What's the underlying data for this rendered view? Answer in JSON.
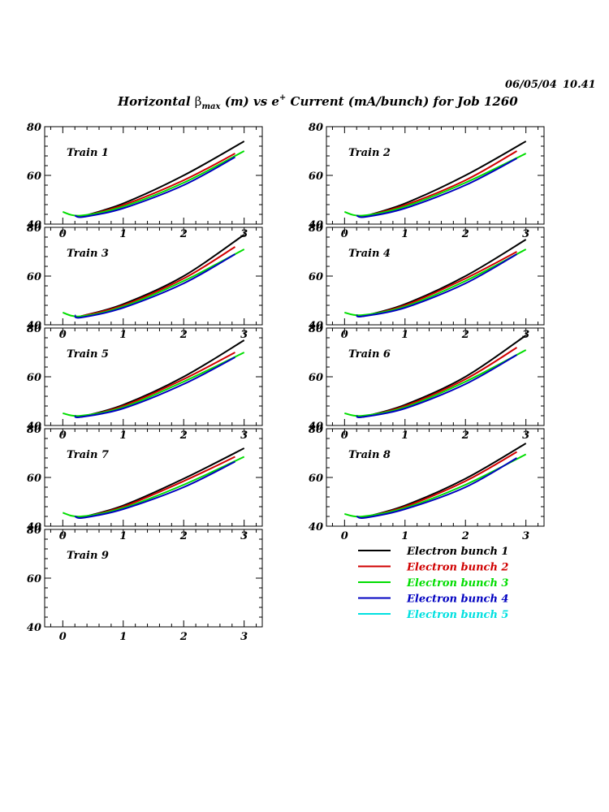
{
  "header": {
    "date": "06/05/04",
    "time": "10.41",
    "title_pre": "Horizontal ",
    "title_beta": "β",
    "title_sub": "max",
    "title_mid": " (m) vs e",
    "title_sup": "+",
    "title_post": " Current (mA/bunch) for  Job 1260"
  },
  "legend": {
    "items": [
      {
        "label": "Electron bunch 1",
        "color": "#000000"
      },
      {
        "label": "Electron bunch 2",
        "color": "#d00000"
      },
      {
        "label": "Electron bunch 3",
        "color": "#00dd00"
      },
      {
        "label": "Electron bunch 4",
        "color": "#0000c0"
      },
      {
        "label": "Electron bunch 5",
        "color": "#00e0e0"
      }
    ]
  },
  "chart_data": [
    {
      "type": "line",
      "title": "Train 1",
      "xlim": [
        -0.3,
        3.3
      ],
      "ylim": [
        40,
        80
      ],
      "x_ticks": [
        "0",
        "1",
        "2",
        "3"
      ],
      "y_ticks": [
        "40",
        "60",
        "80"
      ],
      "series": [
        {
          "name": "Electron bunch 1",
          "x": [
            0.3,
            1,
            2,
            3
          ],
          "y": [
            43,
            48.5,
            60,
            74
          ]
        },
        {
          "name": "Electron bunch 2",
          "x": [
            0.3,
            1,
            2,
            2.85
          ],
          "y": [
            43,
            47.8,
            58,
            69
          ]
        },
        {
          "name": "Electron bunch 3",
          "x": [
            0,
            0.3,
            1,
            2,
            3
          ],
          "y": [
            45,
            43.5,
            47.2,
            57,
            70
          ]
        },
        {
          "name": "Electron bunch 4",
          "x": [
            0.2,
            0.35,
            1,
            2,
            2.85
          ],
          "y": [
            43.5,
            43,
            46.5,
            56,
            67.5
          ]
        }
      ]
    },
    {
      "type": "line",
      "title": "Train 2",
      "xlim": [
        -0.3,
        3.3
      ],
      "ylim": [
        40,
        80
      ],
      "x_ticks": [
        "0",
        "1",
        "2",
        "3"
      ],
      "y_ticks": [
        "40",
        "60",
        "80"
      ],
      "series": [
        {
          "name": "Electron bunch 1",
          "x": [
            0.3,
            1,
            2,
            3
          ],
          "y": [
            43,
            48.5,
            60,
            74
          ]
        },
        {
          "name": "Electron bunch 2",
          "x": [
            0.3,
            1,
            2,
            2.85
          ],
          "y": [
            43,
            47.8,
            58,
            70
          ]
        },
        {
          "name": "Electron bunch 3",
          "x": [
            0,
            0.3,
            1,
            2,
            3
          ],
          "y": [
            45,
            43.5,
            47.2,
            57,
            69
          ]
        },
        {
          "name": "Electron bunch 4",
          "x": [
            0.2,
            0.35,
            1,
            2,
            2.85
          ],
          "y": [
            43.5,
            43,
            46.5,
            56,
            67
          ]
        }
      ]
    },
    {
      "type": "line",
      "title": "Train 3",
      "xlim": [
        -0.3,
        3.3
      ],
      "ylim": [
        40,
        80
      ],
      "x_ticks": [
        "0",
        "1",
        "2",
        "3"
      ],
      "y_ticks": [
        "40",
        "60",
        "80"
      ],
      "series": [
        {
          "name": "Electron bunch 1",
          "x": [
            0.3,
            1,
            2,
            3
          ],
          "y": [
            43.5,
            48.5,
            60,
            77
          ]
        },
        {
          "name": "Electron bunch 2",
          "x": [
            0.3,
            1,
            2,
            2.85
          ],
          "y": [
            43.5,
            48,
            59,
            72
          ]
        },
        {
          "name": "Electron bunch 3",
          "x": [
            0,
            0.3,
            1,
            2,
            3
          ],
          "y": [
            45,
            43.5,
            47.5,
            58,
            71
          ]
        },
        {
          "name": "Electron bunch 4",
          "x": [
            0.2,
            0.3,
            1,
            2,
            2.85
          ],
          "y": [
            44,
            43,
            47,
            57,
            69
          ]
        }
      ]
    },
    {
      "type": "line",
      "title": "Train 4",
      "xlim": [
        -0.3,
        3.3
      ],
      "ylim": [
        40,
        80
      ],
      "x_ticks": [
        "0",
        "1",
        "2",
        "3"
      ],
      "y_ticks": [
        "40",
        "60",
        "80"
      ],
      "series": [
        {
          "name": "Electron bunch 1",
          "x": [
            0.3,
            1,
            2,
            3
          ],
          "y": [
            43.5,
            48.5,
            60,
            75
          ]
        },
        {
          "name": "Electron bunch 2",
          "x": [
            0.3,
            1,
            2,
            2.85
          ],
          "y": [
            43.5,
            48,
            59,
            70
          ]
        },
        {
          "name": "Electron bunch 3",
          "x": [
            0,
            0.3,
            1,
            2,
            3
          ],
          "y": [
            45,
            44,
            47.5,
            58,
            71
          ]
        },
        {
          "name": "Electron bunch 4",
          "x": [
            0.2,
            0.3,
            1,
            2,
            2.85
          ],
          "y": [
            44,
            43.5,
            47,
            57,
            69
          ]
        }
      ]
    },
    {
      "type": "line",
      "title": "Train 5",
      "xlim": [
        -0.3,
        3.3
      ],
      "ylim": [
        40,
        80
      ],
      "x_ticks": [
        "0",
        "1",
        "2",
        "3"
      ],
      "y_ticks": [
        "40",
        "60",
        "80"
      ],
      "series": [
        {
          "name": "Electron bunch 1",
          "x": [
            0.3,
            1,
            2,
            3
          ],
          "y": [
            43.5,
            48.5,
            60,
            75
          ]
        },
        {
          "name": "Electron bunch 2",
          "x": [
            0.3,
            1,
            2,
            2.85
          ],
          "y": [
            43.5,
            48,
            59,
            70
          ]
        },
        {
          "name": "Electron bunch 3",
          "x": [
            0,
            0.3,
            1,
            2,
            3
          ],
          "y": [
            45,
            44,
            47.5,
            58,
            70
          ]
        },
        {
          "name": "Electron bunch 4",
          "x": [
            0.2,
            0.3,
            1,
            2,
            2.85
          ],
          "y": [
            44,
            43.5,
            47,
            57,
            68
          ]
        }
      ]
    },
    {
      "type": "line",
      "title": "Train 6",
      "xlim": [
        -0.3,
        3.3
      ],
      "ylim": [
        40,
        80
      ],
      "x_ticks": [
        "0",
        "1",
        "2",
        "3"
      ],
      "y_ticks": [
        "40",
        "60",
        "80"
      ],
      "series": [
        {
          "name": "Electron bunch 1",
          "x": [
            0.3,
            1,
            2,
            3
          ],
          "y": [
            43.5,
            48.5,
            60,
            77
          ]
        },
        {
          "name": "Electron bunch 2",
          "x": [
            0.3,
            1,
            2,
            2.85
          ],
          "y": [
            43.5,
            48,
            59,
            72
          ]
        },
        {
          "name": "Electron bunch 3",
          "x": [
            0,
            0.3,
            1,
            2,
            3
          ],
          "y": [
            45,
            44,
            47.5,
            58,
            71
          ]
        },
        {
          "name": "Electron bunch 4",
          "x": [
            0.2,
            0.3,
            1,
            2,
            2.85
          ],
          "y": [
            44,
            43.5,
            47,
            57,
            69
          ]
        }
      ]
    },
    {
      "type": "line",
      "title": "Train 7",
      "xlim": [
        -0.3,
        3.3
      ],
      "ylim": [
        40,
        80
      ],
      "x_ticks": [
        "0",
        "1",
        "2",
        "3"
      ],
      "y_ticks": [
        "40",
        "60",
        "80"
      ],
      "series": [
        {
          "name": "Electron bunch 1",
          "x": [
            0.3,
            1,
            2,
            3
          ],
          "y": [
            43.5,
            48.5,
            59.5,
            72
          ]
        },
        {
          "name": "Electron bunch 2",
          "x": [
            0.3,
            1,
            2,
            2.85
          ],
          "y": [
            43.5,
            48,
            58.5,
            68.5
          ]
        },
        {
          "name": "Electron bunch 3",
          "x": [
            0,
            0.3,
            1,
            2,
            3
          ],
          "y": [
            45.5,
            44,
            47.5,
            57,
            68.5
          ]
        },
        {
          "name": "Electron bunch 4",
          "x": [
            0.2,
            0.35,
            1,
            2,
            2.85
          ],
          "y": [
            44,
            43.5,
            47,
            56,
            66.5
          ]
        }
      ]
    },
    {
      "type": "line",
      "title": "Train 8",
      "xlim": [
        -0.3,
        3.3
      ],
      "ylim": [
        40,
        80
      ],
      "x_ticks": [
        "0",
        "1",
        "2",
        "3"
      ],
      "y_ticks": [
        "40",
        "60",
        "80"
      ],
      "series": [
        {
          "name": "Electron bunch 1",
          "x": [
            0.3,
            1,
            2,
            3
          ],
          "y": [
            43.5,
            48.5,
            59.5,
            74
          ]
        },
        {
          "name": "Electron bunch 2",
          "x": [
            0.3,
            1,
            2,
            2.85
          ],
          "y": [
            43.5,
            48,
            58.5,
            70.5
          ]
        },
        {
          "name": "Electron bunch 3",
          "x": [
            0,
            0.3,
            1,
            2,
            3
          ],
          "y": [
            45,
            44,
            47.5,
            57,
            69.5
          ]
        },
        {
          "name": "Electron bunch 4",
          "x": [
            0.2,
            0.35,
            1,
            2,
            2.85
          ],
          "y": [
            44,
            43.5,
            47,
            56,
            68
          ]
        }
      ]
    },
    {
      "type": "line",
      "title": "Train 9",
      "xlim": [
        -0.3,
        3.3
      ],
      "ylim": [
        40,
        80
      ],
      "x_ticks": [
        "0",
        "1",
        "2",
        "3"
      ],
      "y_ticks": [
        "40",
        "60",
        "80"
      ],
      "series": []
    }
  ]
}
